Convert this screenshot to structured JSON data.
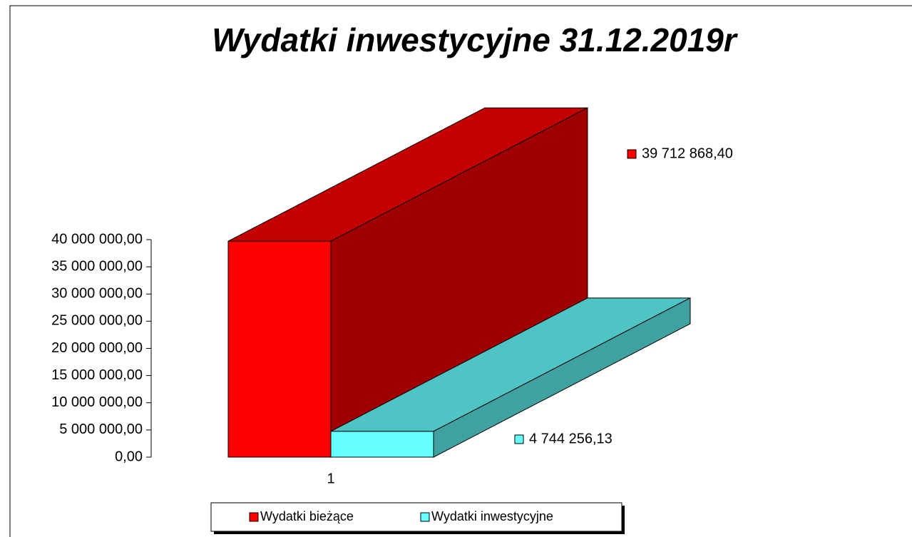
{
  "chart_data": {
    "type": "bar3d",
    "title": "Wydatki inwestycyjne 31.12.2019r",
    "categories": [
      "1"
    ],
    "series": [
      {
        "name": "Wydatki bieżące",
        "color": "#ff0000",
        "values": [
          39712868.4
        ],
        "value_labels": [
          "39 712 868,40"
        ]
      },
      {
        "name": "Wydatki inwestycyjne",
        "color": "#66ffff",
        "values": [
          4744256.13
        ],
        "value_labels": [
          "4 744 256,13"
        ]
      }
    ],
    "ylim": [
      0,
      40000000
    ],
    "yticks": [
      {
        "value": 0,
        "label": "0,00"
      },
      {
        "value": 5000000,
        "label": "5 000 000,00"
      },
      {
        "value": 10000000,
        "label": "10 000 000,00"
      },
      {
        "value": 15000000,
        "label": "15 000 000,00"
      },
      {
        "value": 20000000,
        "label": "20 000 000,00"
      },
      {
        "value": 25000000,
        "label": "25 000 000,00"
      },
      {
        "value": 30000000,
        "label": "30 000 000,00"
      },
      {
        "value": 35000000,
        "label": "35 000 000,00"
      },
      {
        "value": 40000000,
        "label": "40 000 000,00"
      }
    ],
    "legend": "bottom"
  }
}
